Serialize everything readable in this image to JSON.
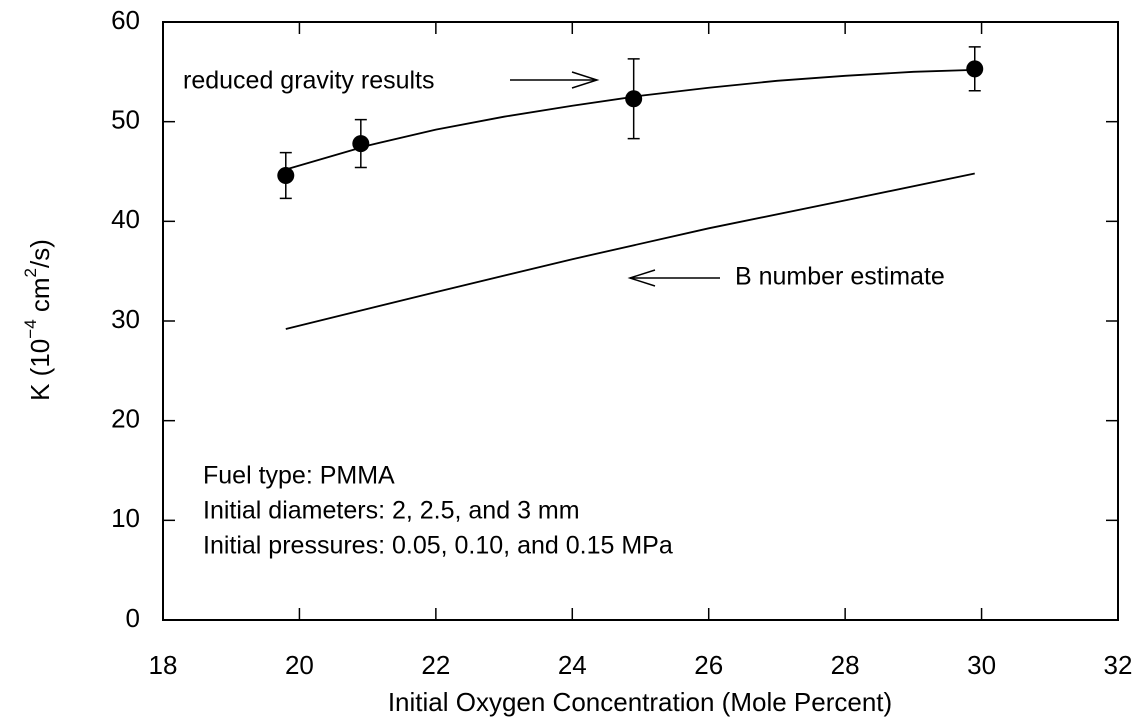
{
  "chart_data": {
    "type": "scatter",
    "xlabel": "Initial Oxygen Concentration (Mole Percent)",
    "ylabel": {
      "start": "K  (10",
      "exp1": "−4",
      "mid": " cm",
      "exp2": "2",
      "end": "/s)"
    },
    "xlim": [
      18,
      32
    ],
    "ylim": [
      0,
      60
    ],
    "xticks": [
      18,
      20,
      22,
      24,
      26,
      28,
      30,
      32
    ],
    "yticks": [
      0,
      10,
      20,
      30,
      40,
      50,
      60
    ],
    "series": [
      {
        "kind": "points",
        "x": [
          19.8,
          20.9,
          24.9,
          29.9
        ],
        "values": [
          44.6,
          47.8,
          52.3,
          55.3
        ],
        "errors": [
          2.3,
          2.4,
          4.0,
          2.2
        ],
        "color": "#000000"
      },
      {
        "kind": "line",
        "x": [
          19.8,
          21,
          22,
          23,
          24,
          25,
          26,
          27,
          28,
          29,
          29.9
        ],
        "values": [
          45.2,
          47.6,
          49.2,
          50.5,
          51.6,
          52.6,
          53.4,
          54.1,
          54.6,
          55.0,
          55.2
        ],
        "color": "#000000"
      },
      {
        "kind": "line",
        "x": [
          19.8,
          22,
          24,
          26,
          28,
          29.9
        ],
        "values": [
          29.2,
          32.9,
          36.2,
          39.3,
          42.1,
          44.8
        ],
        "color": "#000000"
      }
    ],
    "annotations": [
      "reduced gravity results",
      "B number estimate"
    ],
    "notes": [
      "Fuel type: PMMA",
      "Initial diameters: 2, 2.5, and 3 mm",
      "Initial pressures: 0.05, 0.10, and 0.15 MPa"
    ]
  }
}
